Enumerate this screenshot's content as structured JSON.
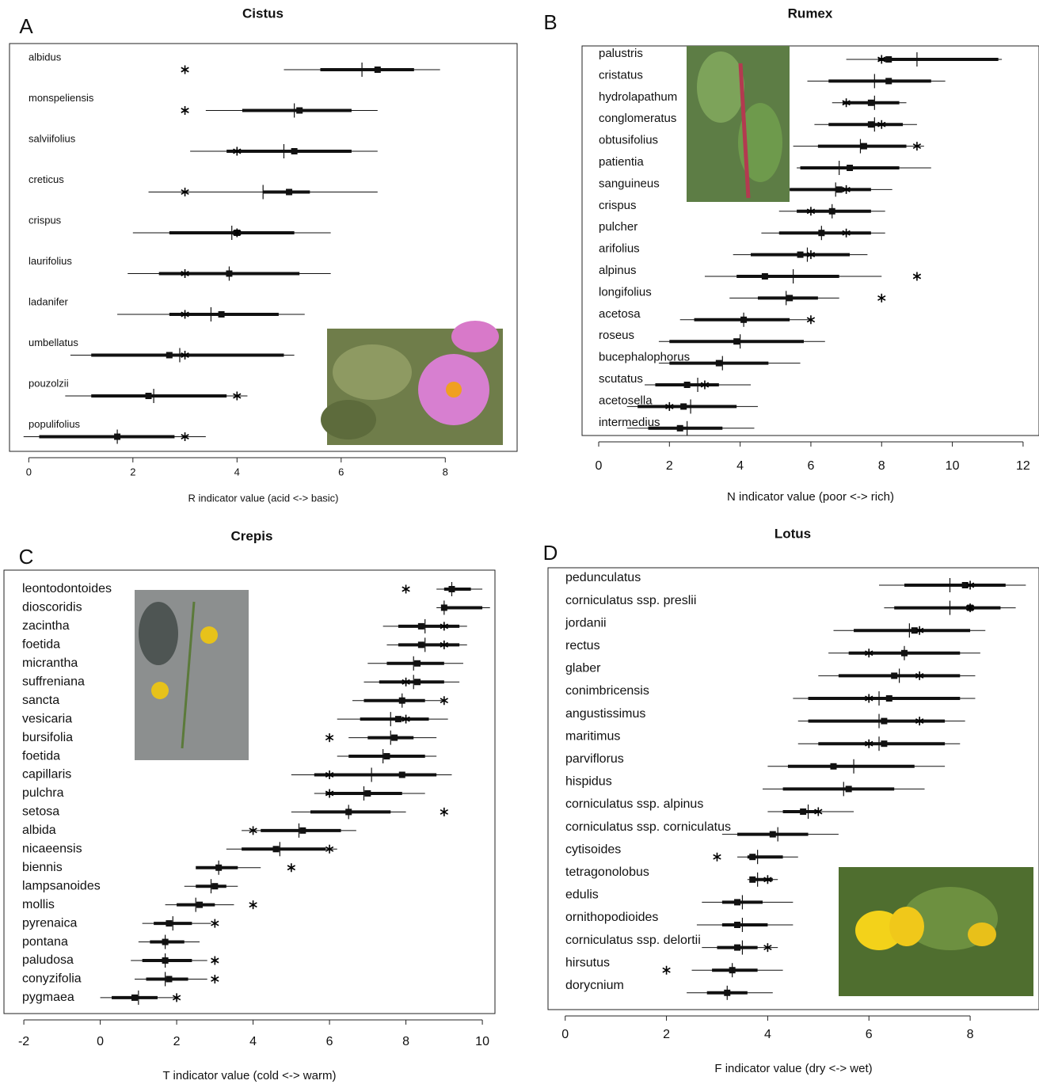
{
  "chart_data": [
    {
      "type": "interval",
      "panel": "A",
      "title": "Cistus",
      "xlabel": "R indicator value (acid <-> basic)",
      "xlim": [
        -0.37,
        9.38
      ],
      "xticks": [
        0,
        2,
        4,
        6,
        8
      ],
      "categories": [
        "albidus",
        "monspeliensis",
        "salviifolius",
        "creticus",
        "crispus",
        "laurifolius",
        "ladanifer",
        "umbellatus",
        "pouzolzii",
        "populifolius"
      ],
      "whisker_low": [
        4.9,
        3.4,
        3.1,
        2.3,
        2.0,
        1.9,
        1.7,
        0.8,
        0.7,
        -0.1
      ],
      "box_low": [
        5.6,
        4.1,
        3.8,
        4.5,
        2.7,
        2.5,
        2.7,
        1.2,
        1.2,
        0.2
      ],
      "box_high": [
        7.4,
        6.2,
        6.2,
        5.4,
        5.1,
        5.2,
        4.8,
        4.9,
        3.8,
        2.8
      ],
      "whisker_high": [
        7.9,
        6.7,
        6.7,
        6.7,
        5.8,
        5.8,
        5.3,
        5.1,
        4.2,
        3.4
      ],
      "median": [
        6.7,
        5.2,
        5.1,
        5.0,
        4.0,
        3.85,
        3.7,
        2.7,
        2.3,
        1.7
      ],
      "mean": [
        6.4,
        5.1,
        4.9,
        4.5,
        3.9,
        3.85,
        3.5,
        2.9,
        2.4,
        1.7
      ],
      "reference": [
        3,
        3,
        4,
        3,
        4,
        3,
        3,
        3,
        4,
        3
      ]
    },
    {
      "type": "interval",
      "panel": "B",
      "title": "Rumex",
      "xlabel": "N indicator value (poor <-> rich)",
      "xlim": [
        -0.47,
        12.45
      ],
      "xticks": [
        0,
        2,
        4,
        6,
        8,
        10,
        12
      ],
      "categories": [
        "palustris",
        "cristatus",
        "hydrolapathum",
        "conglomeratus",
        "obtusifolius",
        "patientia",
        "sanguineus",
        "crispus",
        "pulcher",
        "arifolius",
        "alpinus",
        "longifolius",
        "acetosa",
        "roseus",
        "bucephalophorus",
        "scutatus",
        "acetosella",
        "intermedius"
      ],
      "whisker_low": [
        7.0,
        5.9,
        6.6,
        6.1,
        5.5,
        5.6,
        5.3,
        5.1,
        4.6,
        3.8,
        3.0,
        3.7,
        2.3,
        1.7,
        1.7,
        1.3,
        0.8,
        0.8
      ],
      "box_low": [
        7.9,
        6.5,
        6.9,
        6.5,
        6.2,
        5.7,
        5.4,
        5.6,
        5.1,
        4.3,
        3.9,
        4.5,
        2.7,
        2.0,
        2.0,
        1.6,
        1.1,
        1.4
      ],
      "box_high": [
        11.3,
        9.4,
        8.5,
        8.6,
        8.7,
        8.5,
        7.7,
        7.7,
        7.7,
        7.1,
        6.8,
        6.2,
        5.4,
        5.8,
        4.8,
        3.4,
        3.9,
        3.5
      ],
      "whisker_high": [
        11.4,
        9.8,
        8.7,
        9.0,
        9.2,
        9.4,
        8.3,
        8.1,
        8.1,
        7.6,
        8.0,
        6.8,
        6.0,
        6.4,
        5.7,
        4.3,
        4.5,
        4.4
      ],
      "median": [
        8.2,
        8.2,
        7.7,
        7.7,
        7.5,
        7.1,
        6.8,
        6.6,
        6.3,
        5.7,
        4.7,
        5.4,
        4.1,
        3.9,
        3.4,
        2.5,
        2.4,
        2.3
      ],
      "mean": [
        9.0,
        7.8,
        7.8,
        7.8,
        7.4,
        6.8,
        6.7,
        6.6,
        6.3,
        5.9,
        5.5,
        5.3,
        4.1,
        4.0,
        3.5,
        2.8,
        2.6,
        2.5
      ],
      "reference": [
        8,
        null,
        7,
        8,
        9,
        null,
        7,
        6,
        7,
        6,
        9,
        8,
        6,
        null,
        null,
        3,
        2,
        null
      ]
    },
    {
      "type": "interval",
      "panel": "C",
      "title": "Crepis",
      "xlabel": "T indicator value (cold <-> warm)",
      "xlim": [
        -2.52,
        10.33
      ],
      "xticks": [
        -2,
        0,
        2,
        4,
        6,
        8,
        10
      ],
      "categories": [
        "leontodontoides",
        "dioscoridis",
        "zacintha",
        "foetida",
        "micrantha",
        "suffreniana",
        "sancta",
        "vesicaria",
        "bursifolia",
        "foetida",
        "capillaris",
        "pulchra",
        "setosa",
        "albida",
        "nicaeensis",
        "biennis",
        "lampsanoides",
        "mollis",
        "pyrenaica",
        "pontana",
        "paludosa",
        "conyzifolia",
        "pygmaea"
      ],
      "whisker_low": [
        8.8,
        8.8,
        7.4,
        7.5,
        7.0,
        6.9,
        6.6,
        6.2,
        6.5,
        6.2,
        5.0,
        5.6,
        5.0,
        3.7,
        3.3,
        2.6,
        2.2,
        1.7,
        1.1,
        1.0,
        0.8,
        0.9,
        0.0
      ],
      "box_low": [
        9.0,
        9.0,
        7.8,
        7.8,
        7.5,
        7.3,
        6.9,
        6.8,
        7.0,
        6.5,
        5.6,
        5.9,
        5.5,
        4.2,
        3.7,
        2.5,
        2.5,
        2.0,
        1.4,
        1.3,
        1.1,
        1.2,
        0.3
      ],
      "box_high": [
        9.7,
        10.0,
        9.4,
        9.4,
        9.0,
        9.0,
        8.5,
        8.6,
        8.2,
        8.5,
        8.8,
        7.9,
        7.6,
        6.3,
        5.9,
        3.6,
        3.3,
        3.0,
        2.4,
        2.2,
        2.4,
        2.3,
        1.5
      ],
      "whisker_high": [
        10.0,
        10.2,
        9.6,
        9.6,
        9.5,
        9.4,
        9.0,
        9.1,
        8.8,
        8.8,
        9.2,
        8.5,
        8.0,
        6.7,
        6.2,
        4.2,
        3.6,
        3.5,
        2.9,
        2.6,
        2.8,
        2.8,
        2.0
      ],
      "median": [
        9.2,
        9.0,
        8.4,
        8.4,
        8.3,
        8.3,
        7.9,
        7.8,
        7.7,
        7.5,
        7.9,
        7.0,
        6.5,
        5.3,
        4.6,
        3.1,
        3.0,
        2.6,
        1.8,
        1.7,
        1.7,
        1.8,
        0.9
      ],
      "mean": [
        9.2,
        9.0,
        8.5,
        8.5,
        8.2,
        8.2,
        7.9,
        7.6,
        7.6,
        7.4,
        7.1,
        6.9,
        6.5,
        5.2,
        4.7,
        3.1,
        2.9,
        2.5,
        1.9,
        1.7,
        1.7,
        1.7,
        1.0
      ],
      "reference": [
        8,
        null,
        9,
        9,
        null,
        8,
        9,
        8,
        6,
        null,
        6,
        6,
        9,
        4,
        6,
        5,
        null,
        4,
        3,
        null,
        3,
        3,
        2
      ]
    },
    {
      "type": "interval",
      "panel": "D",
      "title": "Lotus",
      "xlabel": "F indicator value (dry <-> wet)",
      "xlim": [
        -0.34,
        9.36
      ],
      "xticks": [
        0,
        2,
        4,
        6,
        8
      ],
      "categories": [
        "pedunculatus",
        "corniculatus ssp. preslii",
        "jordanii",
        "rectus",
        "glaber",
        "conimbricensis",
        "angustissimus",
        "maritimus",
        "parviflorus",
        "hispidus",
        "corniculatus ssp. alpinus",
        "corniculatus ssp. corniculatus",
        "cytisoides",
        "tetragonolobus",
        "edulis",
        "ornithopodioides",
        "corniculatus ssp. delortii",
        "hirsutus",
        "dorycnium"
      ],
      "whisker_low": [
        6.2,
        6.3,
        5.3,
        5.2,
        5.0,
        4.5,
        4.6,
        4.6,
        4.0,
        3.9,
        4.0,
        3.1,
        3.4,
        3.6,
        2.7,
        2.6,
        2.7,
        2.5,
        2.4
      ],
      "box_low": [
        6.7,
        6.5,
        5.7,
        5.6,
        5.4,
        4.8,
        4.8,
        5.0,
        4.4,
        4.3,
        4.3,
        3.4,
        3.6,
        3.7,
        3.1,
        3.1,
        3.0,
        2.9,
        2.8
      ],
      "box_high": [
        8.7,
        8.6,
        8.0,
        7.8,
        7.8,
        7.8,
        7.5,
        7.5,
        6.9,
        6.5,
        5.0,
        4.8,
        4.3,
        4.1,
        3.9,
        4.0,
        3.8,
        3.8,
        3.6
      ],
      "whisker_high": [
        9.1,
        8.9,
        8.3,
        8.2,
        8.1,
        8.1,
        7.9,
        7.8,
        7.5,
        7.1,
        5.7,
        5.4,
        4.6,
        4.2,
        4.5,
        4.5,
        4.2,
        4.3,
        4.1
      ],
      "median": [
        7.9,
        8.0,
        6.9,
        6.7,
        6.5,
        6.4,
        6.3,
        6.3,
        5.3,
        5.6,
        4.7,
        4.1,
        3.7,
        3.7,
        3.4,
        3.4,
        3.4,
        3.3,
        3.2
      ],
      "mean": [
        7.6,
        7.6,
        6.8,
        6.7,
        6.6,
        6.2,
        6.2,
        6.2,
        5.7,
        5.5,
        4.8,
        4.2,
        3.8,
        3.8,
        3.5,
        3.5,
        3.5,
        3.3,
        3.2
      ],
      "reference": [
        8,
        8,
        7,
        6,
        7,
        6,
        7,
        6,
        null,
        null,
        5,
        null,
        3,
        4,
        null,
        null,
        4,
        2,
        null
      ]
    }
  ]
}
